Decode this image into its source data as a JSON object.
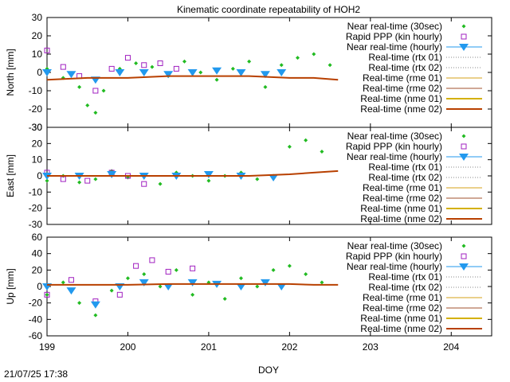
{
  "title": "Kinematic coordinate repeatability of HOH2",
  "xlabel": "DOY",
  "timestamp": "21/07/25 17:38",
  "colors": {
    "near_rt": "#22bb22",
    "rapid_ppp": "#a020c0",
    "hourly": "#2299ee",
    "rtx": "#888888",
    "rme01": "#d4a017",
    "rme02": "#a0522d",
    "nme01": "#d4b000",
    "nme02": "#b84000"
  },
  "legend": [
    {
      "key": "near_rt",
      "label": "Near real-time (30sec)",
      "style": "point"
    },
    {
      "key": "rapid_ppp",
      "label": "Rapid PPP (kin hourly)",
      "style": "square"
    },
    {
      "key": "hourly",
      "label": "Near real-time (hourly)",
      "style": "triangle"
    },
    {
      "key": "rtx",
      "label": "Real-time (rtx 01)",
      "style": "dot-line"
    },
    {
      "key": "rtx",
      "label": "Real-time (rtx 02)",
      "style": "dot-line"
    },
    {
      "key": "rme01",
      "label": "Real-time (rme 01)",
      "style": "line"
    },
    {
      "key": "rme02",
      "label": "Real-time (rme 02)",
      "style": "line"
    },
    {
      "key": "nme01",
      "label": "Real-time (nme 01)",
      "style": "thick"
    },
    {
      "key": "nme02",
      "label": "Real-time (nme 02)",
      "style": "thick"
    }
  ],
  "chart_data": [
    {
      "type": "scatter",
      "ylabel": "North [mm]",
      "xlim": [
        199,
        204.5
      ],
      "ylim": [
        -30,
        30
      ],
      "yticks": [
        "30",
        "20",
        "10",
        "0",
        "-10",
        "-20",
        "-30"
      ],
      "xticks": [],
      "series": [
        {
          "name": "Near real-time (30sec)",
          "key": "near_rt",
          "x": [
            199.0,
            199.2,
            199.4,
            199.5,
            199.6,
            199.7,
            199.9,
            200.1,
            200.3,
            200.5,
            200.7,
            200.9,
            201.1,
            201.3,
            201.5,
            201.7,
            201.9,
            202.1,
            202.3,
            202.5
          ],
          "y": [
            2,
            -3,
            -8,
            -18,
            -22,
            -10,
            2,
            5,
            3,
            -2,
            6,
            0,
            -4,
            2,
            6,
            -8,
            4,
            8,
            10,
            4
          ]
        },
        {
          "name": "Rapid PPP (kin hourly)",
          "key": "rapid_ppp",
          "x": [
            199.0,
            199.2,
            199.4,
            199.6,
            199.8,
            200.0,
            200.2,
            200.4,
            200.6
          ],
          "y": [
            12,
            3,
            -2,
            -10,
            2,
            8,
            4,
            5,
            2
          ]
        },
        {
          "name": "Near real-time (hourly)",
          "key": "hourly",
          "x": [
            199.0,
            199.3,
            199.6,
            199.9,
            200.2,
            200.5,
            200.8,
            201.1,
            201.4,
            201.7,
            201.9
          ],
          "y": [
            0,
            -1,
            -4,
            0,
            0,
            -1,
            0,
            1,
            0,
            -1,
            0
          ]
        },
        {
          "name": "Real-time (nme 02)",
          "key": "nme02",
          "x": [
            199.0,
            199.5,
            200.0,
            200.5,
            201.0,
            201.5,
            202.0,
            202.3,
            202.6
          ],
          "y": [
            -4,
            -3,
            -3,
            -2,
            -2,
            -2,
            -3,
            -3,
            -4
          ]
        }
      ]
    },
    {
      "type": "scatter",
      "ylabel": "East [mm]",
      "xlim": [
        199,
        204.5
      ],
      "ylim": [
        -30,
        30
      ],
      "yticks": [
        "30",
        "20",
        "10",
        "0",
        "-10",
        "-20",
        "-30"
      ],
      "xticks": [],
      "series": [
        {
          "name": "Near real-time (30sec)",
          "key": "near_rt",
          "x": [
            199.0,
            199.2,
            199.4,
            199.6,
            199.8,
            200.0,
            200.2,
            200.4,
            200.6,
            200.8,
            201.0,
            201.2,
            201.4,
            201.6,
            201.8,
            202.0,
            202.2,
            202.4
          ],
          "y": [
            -3,
            0,
            -4,
            -2,
            3,
            -1,
            0,
            -5,
            2,
            0,
            -3,
            0,
            2,
            -2,
            0,
            18,
            22,
            15
          ]
        },
        {
          "name": "Rapid PPP (kin hourly)",
          "key": "rapid_ppp",
          "x": [
            199.0,
            199.2,
            199.5,
            199.8,
            200.0,
            200.2
          ],
          "y": [
            2,
            -2,
            -3,
            2,
            0,
            -5
          ]
        },
        {
          "name": "Near real-time (hourly)",
          "key": "hourly",
          "x": [
            199.0,
            199.4,
            199.8,
            200.2,
            200.6,
            201.0,
            201.4,
            201.8
          ],
          "y": [
            0,
            0,
            1,
            0,
            0,
            1,
            0,
            -1
          ]
        },
        {
          "name": "Real-time (nme 02)",
          "key": "nme02",
          "x": [
            199.0,
            199.5,
            200.0,
            200.5,
            201.0,
            201.5,
            202.0,
            202.3,
            202.6
          ],
          "y": [
            0,
            0,
            0,
            0,
            0,
            0,
            1,
            2,
            3
          ]
        }
      ]
    },
    {
      "type": "scatter",
      "ylabel": "Up [mm]",
      "xlim": [
        199,
        204.5
      ],
      "ylim": [
        -60,
        60
      ],
      "yticks": [
        "60",
        "40",
        "20",
        "0",
        "-20",
        "-40",
        "-60"
      ],
      "xticks": [
        "199",
        "200",
        "201",
        "202",
        "203",
        "204"
      ],
      "series": [
        {
          "name": "Near real-time (30sec)",
          "key": "near_rt",
          "x": [
            199.0,
            199.2,
            199.4,
            199.6,
            199.8,
            200.0,
            200.2,
            200.4,
            200.6,
            200.8,
            201.0,
            201.2,
            201.4,
            201.6,
            201.8,
            202.0,
            202.2,
            202.4
          ],
          "y": [
            -10,
            5,
            -20,
            -35,
            -5,
            10,
            15,
            0,
            20,
            -10,
            5,
            -15,
            10,
            0,
            20,
            25,
            15,
            5
          ]
        },
        {
          "name": "Rapid PPP (kin hourly)",
          "key": "rapid_ppp",
          "x": [
            199.0,
            199.3,
            199.6,
            199.9,
            200.1,
            200.3,
            200.5,
            200.8
          ],
          "y": [
            -10,
            8,
            -18,
            -10,
            25,
            32,
            18,
            22
          ]
        },
        {
          "name": "Near real-time (hourly)",
          "key": "hourly",
          "x": [
            199.0,
            199.3,
            199.6,
            199.9,
            200.2,
            200.5,
            200.8,
            201.1,
            201.4,
            201.7,
            201.9
          ],
          "y": [
            0,
            -5,
            -22,
            0,
            5,
            0,
            5,
            3,
            0,
            5,
            0
          ]
        },
        {
          "name": "Real-time (nme 02)",
          "key": "nme02",
          "x": [
            199.0,
            199.5,
            200.0,
            200.5,
            201.0,
            201.5,
            202.0,
            202.3,
            202.6
          ],
          "y": [
            2,
            2,
            2,
            3,
            3,
            3,
            3,
            2,
            2
          ]
        }
      ]
    }
  ]
}
